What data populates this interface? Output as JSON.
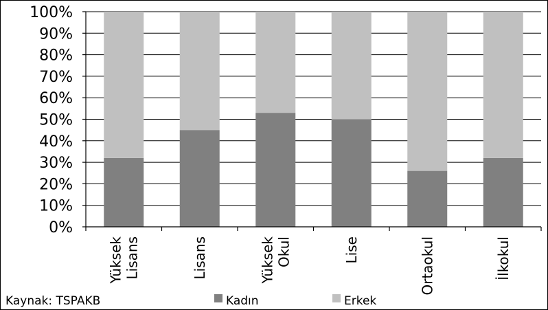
{
  "chart_data": {
    "type": "bar",
    "stacked": true,
    "percent": true,
    "categories": [
      "Yüksek Lisans",
      "Lisans",
      "Yüksek Okul",
      "Lise",
      "Ortaokul",
      "İlkokul"
    ],
    "category_lines": [
      [
        "Yüksek",
        "Lisans"
      ],
      [
        "Lisans"
      ],
      [
        "Yüksek",
        "Okul"
      ],
      [
        "Lise"
      ],
      [
        "Ortaokul"
      ],
      [
        "İlkokul"
      ]
    ],
    "series": [
      {
        "name": "Kadın",
        "color": "#808080",
        "values": [
          32,
          45,
          53,
          50,
          26,
          32
        ]
      },
      {
        "name": "Erkek",
        "color": "#c0c0c0",
        "values": [
          68,
          55,
          47,
          50,
          74,
          68
        ]
      }
    ],
    "y_ticks": [
      "0%",
      "10%",
      "20%",
      "30%",
      "40%",
      "50%",
      "60%",
      "70%",
      "80%",
      "90%",
      "100%"
    ],
    "ylim": [
      0,
      100
    ],
    "grid": true,
    "legend_placement": "bottom",
    "source_note": "Kaynak: TSPAKB"
  }
}
